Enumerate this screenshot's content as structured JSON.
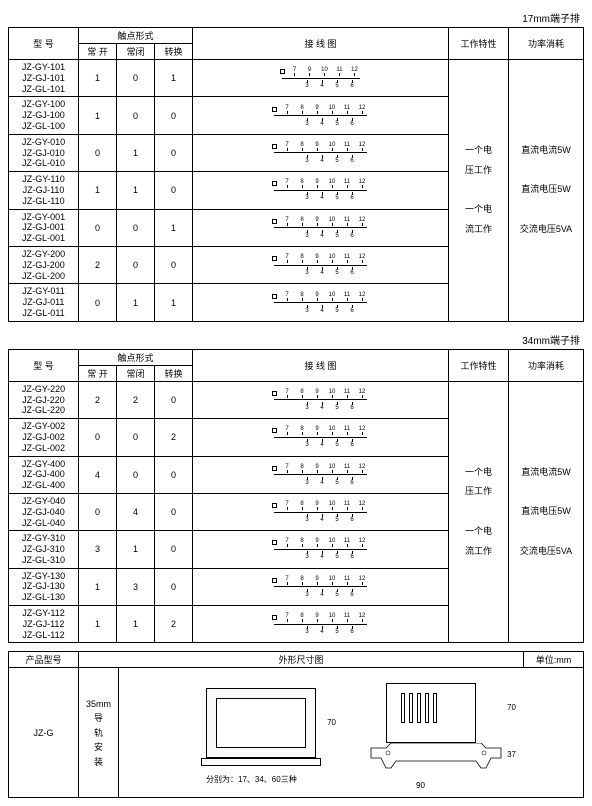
{
  "captions": {
    "t1": "17mm端子排",
    "t2": "34mm端子排"
  },
  "headers": {
    "model": "型 号",
    "contact_form": "触点形式",
    "no": "常 开",
    "nc": "常闭",
    "co": "转换",
    "wiring": "接 线 图",
    "work": "工作特性",
    "power": "功率消耗"
  },
  "work_text": {
    "a": "一个电",
    "b": "压工作",
    "c": "一个电",
    "d": "流工作"
  },
  "power_text": {
    "a": "直流电流5W",
    "b": "直流电压5W",
    "c": "交流电压5VA"
  },
  "table1": [
    {
      "models": [
        "JZ-GY-101",
        "JZ-GJ-101",
        "JZ-GL-101"
      ],
      "no": "1",
      "nc": "0",
      "co": "1",
      "top": [
        "7",
        "9",
        "10",
        "11",
        "12"
      ],
      "bot": [
        "3",
        "4",
        "5",
        "6"
      ]
    },
    {
      "models": [
        "JZ-GY-100",
        "JZ-GJ-100",
        "JZ-GL-100"
      ],
      "no": "1",
      "nc": "0",
      "co": "0",
      "top": [
        "7",
        "8",
        "9",
        "10",
        "11",
        "12"
      ],
      "bot": [
        "3",
        "4",
        "5",
        "6"
      ]
    },
    {
      "models": [
        "JZ-GY-010",
        "JZ-GJ-010",
        "JZ-GL-010"
      ],
      "no": "0",
      "nc": "1",
      "co": "0",
      "top": [
        "7",
        "8",
        "9",
        "10",
        "11",
        "12"
      ],
      "bot": [
        "3",
        "4",
        "5",
        "6"
      ]
    },
    {
      "models": [
        "JZ-GY-110",
        "JZ-GJ-110",
        "JZ-GL-110"
      ],
      "no": "1",
      "nc": "1",
      "co": "0",
      "top": [
        "7",
        "8",
        "9",
        "10",
        "11",
        "12"
      ],
      "bot": [
        "3",
        "4",
        "5",
        "6"
      ]
    },
    {
      "models": [
        "JZ-GY-001",
        "JZ-GJ-001",
        "JZ-GL-001"
      ],
      "no": "0",
      "nc": "0",
      "co": "1",
      "top": [
        "7",
        "8",
        "9",
        "10",
        "11",
        "12"
      ],
      "bot": [
        "3",
        "4",
        "5",
        "6"
      ]
    },
    {
      "models": [
        "JZ-GY-200",
        "JZ-GJ-200",
        "JZ-GL-200"
      ],
      "no": "2",
      "nc": "0",
      "co": "0",
      "top": [
        "7",
        "8",
        "9",
        "10",
        "11",
        "12"
      ],
      "bot": [
        "3",
        "4",
        "5",
        "6"
      ]
    },
    {
      "models": [
        "JZ-GY-011",
        "JZ-GJ-011",
        "JZ-GL-011"
      ],
      "no": "0",
      "nc": "1",
      "co": "1",
      "top": [
        "7",
        "8",
        "9",
        "10",
        "11",
        "12"
      ],
      "bot": [
        "3",
        "4",
        "5",
        "6"
      ]
    }
  ],
  "table2": [
    {
      "models": [
        "JZ-GY-220",
        "JZ-GJ-220",
        "JZ-GL-220"
      ],
      "no": "2",
      "nc": "2",
      "co": "0",
      "top": [
        "7",
        "8",
        "9",
        "10",
        "11",
        "12"
      ],
      "bot": [
        "3",
        "4",
        "5",
        "6"
      ]
    },
    {
      "models": [
        "JZ-GY-002",
        "JZ-GJ-002",
        "JZ-GL-002"
      ],
      "no": "0",
      "nc": "0",
      "co": "2",
      "top": [
        "7",
        "8",
        "9",
        "10",
        "11",
        "12"
      ],
      "bot": [
        "3",
        "4",
        "5",
        "6"
      ]
    },
    {
      "models": [
        "JZ-GY-400",
        "JZ-GJ-400",
        "JZ-GL-400"
      ],
      "no": "4",
      "nc": "0",
      "co": "0",
      "top": [
        "7",
        "8",
        "9",
        "10",
        "11",
        "12"
      ],
      "bot": [
        "3",
        "4",
        "5",
        "6"
      ]
    },
    {
      "models": [
        "JZ-GY-040",
        "JZ-GJ-040",
        "JZ-GL-040"
      ],
      "no": "0",
      "nc": "4",
      "co": "0",
      "top": [
        "7",
        "8",
        "9",
        "10",
        "11",
        "12"
      ],
      "bot": [
        "3",
        "4",
        "5",
        "6"
      ]
    },
    {
      "models": [
        "JZ-GY-310",
        "JZ-GJ-310",
        "JZ-GL-310"
      ],
      "no": "3",
      "nc": "1",
      "co": "0",
      "top": [
        "7",
        "8",
        "9",
        "10",
        "11",
        "12"
      ],
      "bot": [
        "3",
        "4",
        "5",
        "6"
      ]
    },
    {
      "models": [
        "JZ-GY-130",
        "JZ-GJ-130",
        "JZ-GL-130"
      ],
      "no": "1",
      "nc": "3",
      "co": "0",
      "top": [
        "7",
        "8",
        "9",
        "10",
        "11",
        "12"
      ],
      "bot": [
        "3",
        "4",
        "5",
        "6"
      ]
    },
    {
      "models": [
        "JZ-GY-112",
        "JZ-GJ-112",
        "JZ-GL-112"
      ],
      "no": "1",
      "nc": "1",
      "co": "2",
      "top": [
        "7",
        "8",
        "9",
        "10",
        "11",
        "12"
      ],
      "bot": [
        "3",
        "4",
        "5",
        "6"
      ]
    }
  ],
  "dim_table": {
    "h_product": "产品型号",
    "h_outline": "外形尺寸图",
    "h_unit": "单位:mm",
    "row_model": "JZ-G",
    "mount_label": [
      "35mm",
      "导",
      "轨",
      "安",
      "装"
    ],
    "front_h": "70",
    "front_note": "分别为：17、34、60三种",
    "side_h1": "70",
    "side_h2": "37",
    "side_w": "90"
  }
}
